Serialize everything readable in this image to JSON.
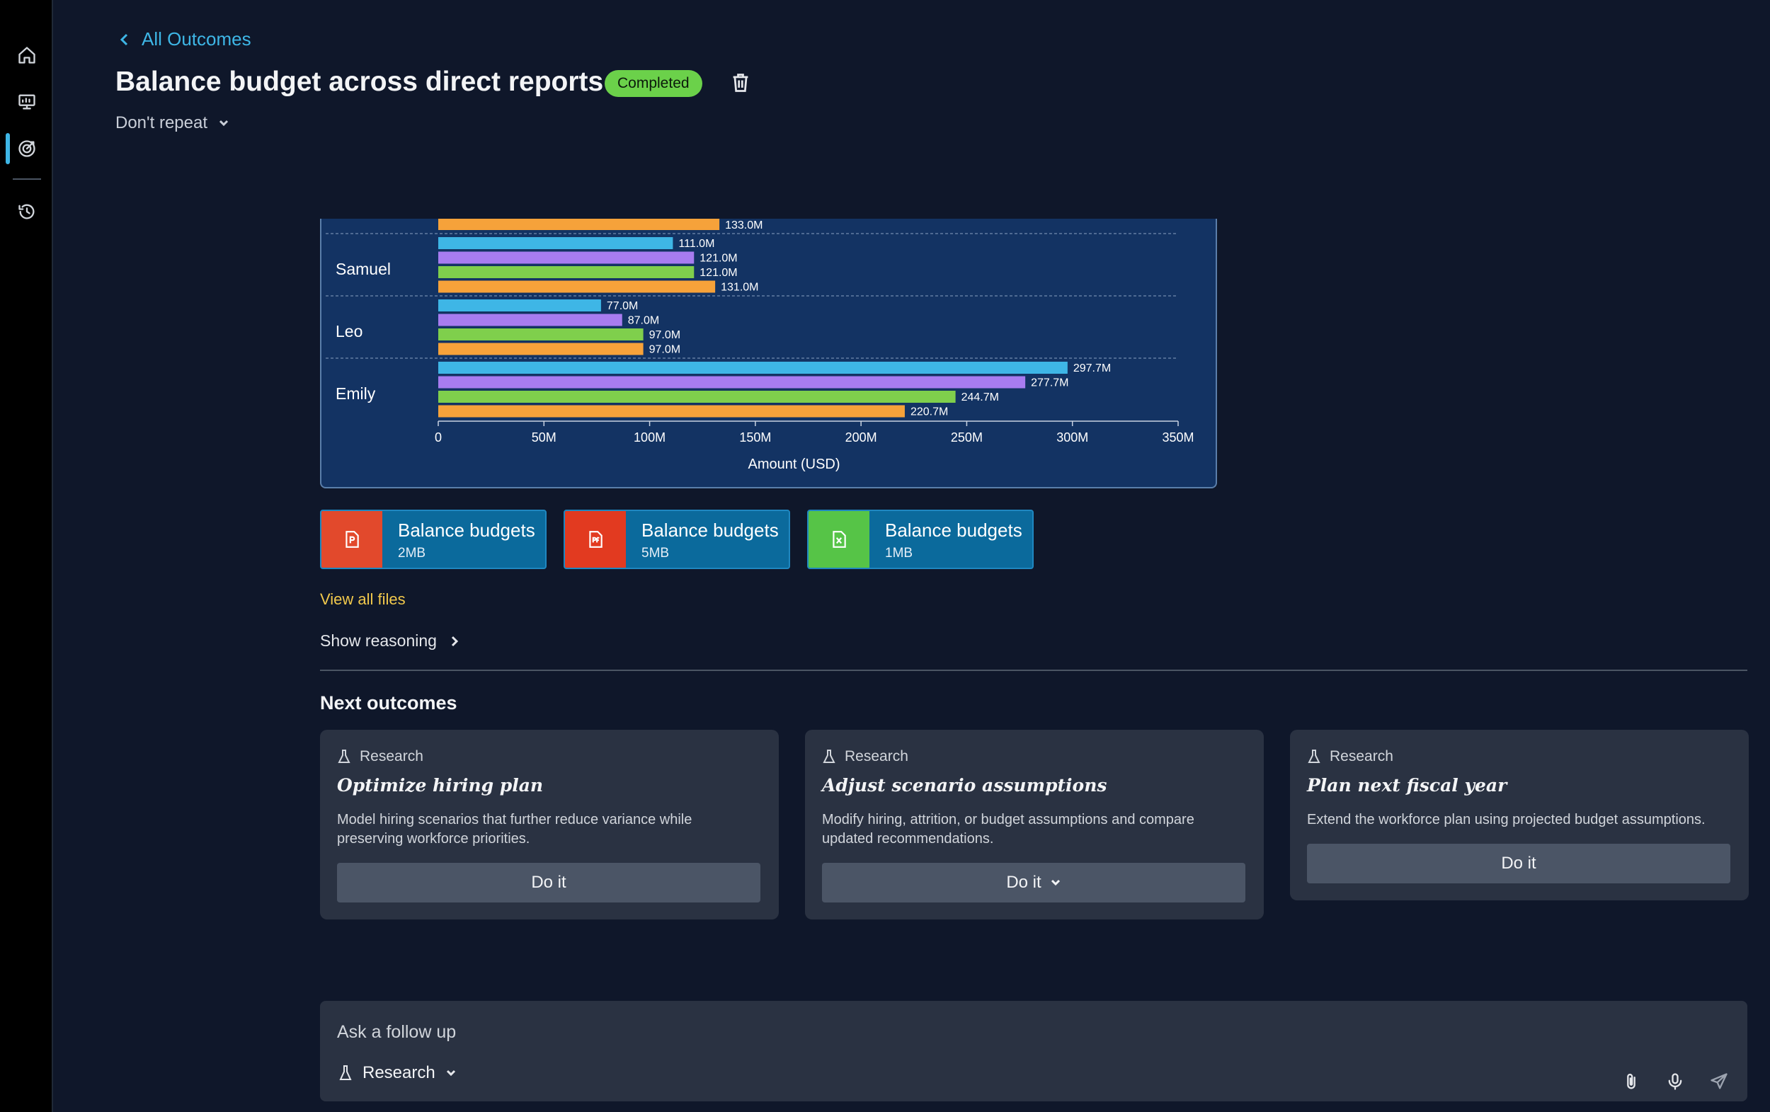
{
  "sidebar": {
    "items": [
      {
        "icon": "home-icon"
      },
      {
        "icon": "presentation-icon"
      },
      {
        "icon": "target-icon",
        "active": true
      },
      {
        "icon": "history-icon"
      }
    ]
  },
  "header": {
    "back_label": "All Outcomes",
    "title": "Balance budget across direct reports",
    "status": "Completed",
    "repeat_label": "Don't repeat"
  },
  "colors": {
    "accent": "#3eb6e6",
    "status": "#6bd14a",
    "series": [
      "#3eb6e6",
      "#a77cf0",
      "#7fcf4c",
      "#f6a23a"
    ],
    "link_yellow": "#f2c94c"
  },
  "chart_data": {
    "type": "bar",
    "orientation": "horizontal",
    "categories": [
      "Samuel",
      "Leo",
      "Emily"
    ],
    "series": [
      {
        "values": [
          111.0,
          77.0,
          297.7
        ]
      },
      {
        "values": [
          121.0,
          87.0,
          277.7
        ]
      },
      {
        "values": [
          121.0,
          97.0,
          244.7
        ]
      },
      {
        "values": [
          131.0,
          97.0,
          220.7
        ]
      }
    ],
    "value_labels": [
      [
        "111.0M",
        "121.0M",
        "121.0M",
        "131.0M"
      ],
      [
        "77.0M",
        "87.0M",
        "97.0M",
        "97.0M"
      ],
      [
        "297.7M",
        "277.7M",
        "244.7M",
        "220.7M"
      ]
    ],
    "partial_bar_above": {
      "value": 133.0,
      "label": "133.0M"
    },
    "xlabel": "Amount (USD)",
    "xlim": [
      0,
      350
    ],
    "ticks": [
      "0",
      "50M",
      "100M",
      "150M",
      "200M",
      "250M",
      "300M",
      "350M"
    ]
  },
  "files": [
    {
      "name": "Balance budgets",
      "size": "2MB",
      "type": "ppt",
      "color": "#e2492c"
    },
    {
      "name": "Balance budgets",
      "size": "5MB",
      "type": "pdf",
      "color": "#e23a20"
    },
    {
      "name": "Balance budgets",
      "size": "1MB",
      "type": "xls",
      "color": "#56c447"
    }
  ],
  "links": {
    "view_all": "View all files",
    "show_reasoning": "Show reasoning"
  },
  "next_outcomes": {
    "title": "Next outcomes",
    "cards": [
      {
        "kind": "Research",
        "title": "Optimize hiring plan",
        "desc": "Model hiring scenarios that further reduce variance while preserving workforce priorities.",
        "button": "Do it"
      },
      {
        "kind": "Research",
        "title": "Adjust scenario assumptions",
        "desc": "Modify hiring, attrition, or budget assumptions and compare updated recommendations.",
        "button": "Do it"
      },
      {
        "kind": "Research",
        "title": "Plan next fiscal year",
        "desc": "Extend the workforce plan using projected budget assumptions.",
        "button": "Do it"
      }
    ]
  },
  "followup": {
    "placeholder": "Ask a follow up",
    "mode": "Research"
  }
}
